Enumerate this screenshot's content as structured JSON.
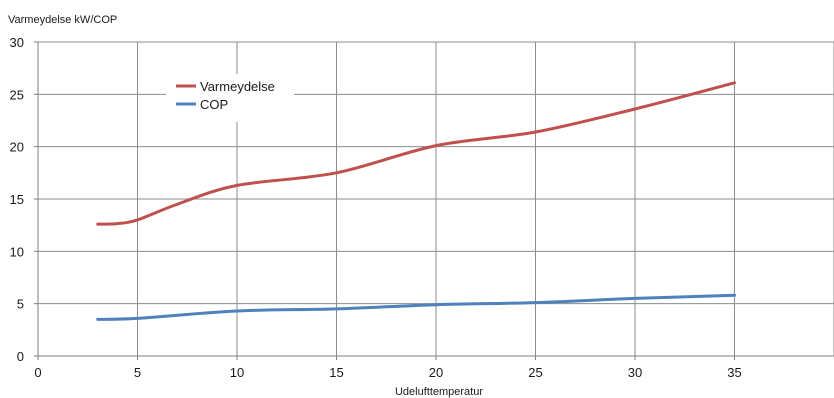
{
  "chart_data": {
    "type": "line",
    "title": "",
    "ylabel": "Varmeydelse kW/COP",
    "xlabel": "Udelufttemperatur",
    "xlim": [
      0,
      40
    ],
    "ylim": [
      0,
      30
    ],
    "x_ticks": [
      0,
      5,
      10,
      15,
      20,
      25,
      30,
      35
    ],
    "y_ticks": [
      0,
      5,
      10,
      15,
      20,
      25,
      30
    ],
    "grid": true,
    "legend_position": "top-left",
    "series": [
      {
        "name": "Varmeydelse",
        "color": "#c0504d",
        "x": [
          3,
          4,
          5,
          7,
          10,
          15,
          20,
          25,
          30,
          35
        ],
        "y": [
          12.6,
          12.65,
          13.0,
          14.5,
          16.3,
          17.5,
          20.1,
          21.4,
          23.6,
          26.1
        ]
      },
      {
        "name": "COP",
        "color": "#4f81bd",
        "x": [
          3,
          5,
          10,
          15,
          20,
          25,
          30,
          35
        ],
        "y": [
          3.5,
          3.6,
          4.3,
          4.5,
          4.9,
          5.1,
          5.5,
          5.8
        ]
      }
    ]
  }
}
